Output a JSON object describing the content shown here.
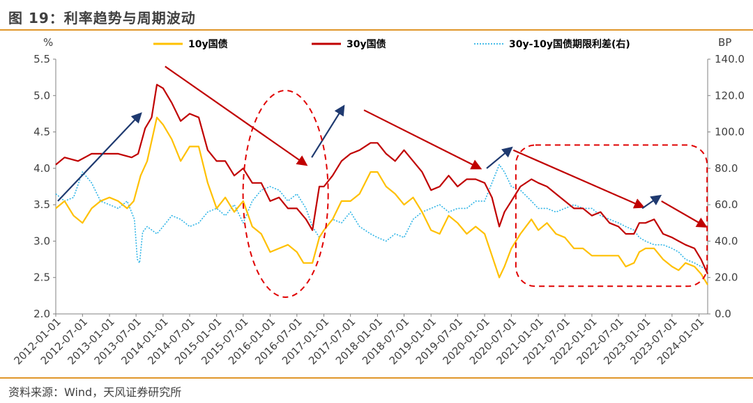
{
  "header": {
    "title": "图 19：利率趋势与周期波动"
  },
  "footer": {
    "source": "资料来源：Wind，天风证券研究所"
  },
  "colors": {
    "accent": "#e0962a",
    "series_10y": "#ffc000",
    "series_30y": "#c00000",
    "series_spread": "#2eb4e6",
    "trend_up": "#1f3a70",
    "trend_down": "#c00000",
    "dashed_marker": "#e00000"
  },
  "chart_data": {
    "type": "line",
    "left_axis_unit": "%",
    "right_axis_unit": "BP",
    "ylim_left": [
      2.0,
      5.5
    ],
    "ylim_right": [
      0.0,
      140.0
    ],
    "yticks_left": [
      "2.0",
      "2.5",
      "3.0",
      "3.5",
      "4.0",
      "4.5",
      "5.0",
      "5.5"
    ],
    "yticks_right": [
      "0.0",
      "20.0",
      "40.0",
      "60.0",
      "80.0",
      "100.0",
      "120.0",
      "140.0"
    ],
    "xticks": [
      "2012-01-01",
      "2012-07-01",
      "2013-01-01",
      "2013-07-01",
      "2014-01-01",
      "2014-07-01",
      "2015-01-01",
      "2015-07-01",
      "2016-01-01",
      "2016-07-01",
      "2017-01-01",
      "2017-07-01",
      "2018-01-01",
      "2018-07-01",
      "2019-01-01",
      "2019-07-01",
      "2020-01-01",
      "2020-07-01",
      "2021-01-01",
      "2021-07-01",
      "2022-01-01",
      "2022-07-01",
      "2023-01-01",
      "2023-07-01",
      "2024-01-01"
    ],
    "x_start": "2012-01-01",
    "x_end": "2024-02-29",
    "grid": false,
    "legend_position": "top",
    "series": [
      {
        "name": "10y国债",
        "axis": "left",
        "style": "solid",
        "points": [
          [
            "2012-01-01",
            3.45
          ],
          [
            "2012-03-01",
            3.55
          ],
          [
            "2012-05-01",
            3.35
          ],
          [
            "2012-07-01",
            3.25
          ],
          [
            "2012-09-01",
            3.45
          ],
          [
            "2012-11-01",
            3.55
          ],
          [
            "2013-01-01",
            3.6
          ],
          [
            "2013-03-01",
            3.55
          ],
          [
            "2013-05-01",
            3.45
          ],
          [
            "2013-06-15",
            3.55
          ],
          [
            "2013-08-01",
            3.9
          ],
          [
            "2013-09-15",
            4.1
          ],
          [
            "2013-11-20",
            4.7
          ],
          [
            "2014-01-01",
            4.6
          ],
          [
            "2014-03-01",
            4.4
          ],
          [
            "2014-05-01",
            4.1
          ],
          [
            "2014-07-01",
            4.3
          ],
          [
            "2014-09-01",
            4.3
          ],
          [
            "2014-11-01",
            3.8
          ],
          [
            "2015-01-01",
            3.45
          ],
          [
            "2015-03-01",
            3.6
          ],
          [
            "2015-05-01",
            3.4
          ],
          [
            "2015-07-01",
            3.55
          ],
          [
            "2015-09-01",
            3.2
          ],
          [
            "2015-11-01",
            3.1
          ],
          [
            "2016-01-01",
            2.85
          ],
          [
            "2016-03-01",
            2.9
          ],
          [
            "2016-05-01",
            2.95
          ],
          [
            "2016-07-01",
            2.85
          ],
          [
            "2016-08-15",
            2.7
          ],
          [
            "2016-10-15",
            2.7
          ],
          [
            "2016-12-01",
            3.05
          ],
          [
            "2017-01-01",
            3.15
          ],
          [
            "2017-03-01",
            3.3
          ],
          [
            "2017-05-01",
            3.55
          ],
          [
            "2017-07-01",
            3.55
          ],
          [
            "2017-09-01",
            3.65
          ],
          [
            "2017-11-15",
            3.95
          ],
          [
            "2018-01-01",
            3.95
          ],
          [
            "2018-03-01",
            3.75
          ],
          [
            "2018-05-01",
            3.65
          ],
          [
            "2018-07-01",
            3.5
          ],
          [
            "2018-09-01",
            3.6
          ],
          [
            "2018-11-01",
            3.4
          ],
          [
            "2019-01-01",
            3.15
          ],
          [
            "2019-03-01",
            3.1
          ],
          [
            "2019-05-01",
            3.35
          ],
          [
            "2019-07-01",
            3.25
          ],
          [
            "2019-09-01",
            3.1
          ],
          [
            "2019-11-01",
            3.2
          ],
          [
            "2020-01-01",
            3.1
          ],
          [
            "2020-02-20",
            2.8
          ],
          [
            "2020-04-10",
            2.5
          ],
          [
            "2020-05-15",
            2.65
          ],
          [
            "2020-07-01",
            2.9
          ],
          [
            "2020-09-01",
            3.1
          ],
          [
            "2020-11-15",
            3.3
          ],
          [
            "2021-01-01",
            3.15
          ],
          [
            "2021-03-01",
            3.25
          ],
          [
            "2021-05-01",
            3.1
          ],
          [
            "2021-07-01",
            3.05
          ],
          [
            "2021-09-01",
            2.9
          ],
          [
            "2021-11-01",
            2.9
          ],
          [
            "2022-01-01",
            2.8
          ],
          [
            "2022-03-01",
            2.8
          ],
          [
            "2022-05-01",
            2.8
          ],
          [
            "2022-07-01",
            2.8
          ],
          [
            "2022-08-20",
            2.65
          ],
          [
            "2022-10-15",
            2.7
          ],
          [
            "2022-11-20",
            2.85
          ],
          [
            "2023-01-01",
            2.9
          ],
          [
            "2023-03-01",
            2.9
          ],
          [
            "2023-05-01",
            2.75
          ],
          [
            "2023-07-01",
            2.65
          ],
          [
            "2023-08-15",
            2.6
          ],
          [
            "2023-10-01",
            2.7
          ],
          [
            "2023-12-01",
            2.65
          ],
          [
            "2024-01-15",
            2.55
          ],
          [
            "2024-02-29",
            2.4
          ]
        ]
      },
      {
        "name": "30y国债",
        "axis": "left",
        "style": "solid",
        "points": [
          [
            "2012-01-01",
            4.05
          ],
          [
            "2012-03-01",
            4.15
          ],
          [
            "2012-06-01",
            4.1
          ],
          [
            "2012-09-01",
            4.2
          ],
          [
            "2012-12-01",
            4.2
          ],
          [
            "2013-03-01",
            4.2
          ],
          [
            "2013-06-01",
            4.15
          ],
          [
            "2013-07-15",
            4.2
          ],
          [
            "2013-09-01",
            4.55
          ],
          [
            "2013-10-15",
            4.7
          ],
          [
            "2013-11-20",
            5.15
          ],
          [
            "2014-01-01",
            5.1
          ],
          [
            "2014-03-01",
            4.9
          ],
          [
            "2014-05-01",
            4.65
          ],
          [
            "2014-07-01",
            4.75
          ],
          [
            "2014-09-01",
            4.7
          ],
          [
            "2014-11-01",
            4.25
          ],
          [
            "2015-01-01",
            4.1
          ],
          [
            "2015-03-01",
            4.1
          ],
          [
            "2015-05-01",
            3.9
          ],
          [
            "2015-07-01",
            4.0
          ],
          [
            "2015-09-01",
            3.8
          ],
          [
            "2015-11-01",
            3.8
          ],
          [
            "2016-01-01",
            3.55
          ],
          [
            "2016-03-01",
            3.6
          ],
          [
            "2016-05-01",
            3.45
          ],
          [
            "2016-07-01",
            3.45
          ],
          [
            "2016-09-01",
            3.3
          ],
          [
            "2016-10-15",
            3.15
          ],
          [
            "2016-12-01",
            3.75
          ],
          [
            "2017-01-01",
            3.75
          ],
          [
            "2017-03-01",
            3.9
          ],
          [
            "2017-05-01",
            4.1
          ],
          [
            "2017-07-01",
            4.2
          ],
          [
            "2017-09-01",
            4.25
          ],
          [
            "2017-11-15",
            4.35
          ],
          [
            "2018-01-01",
            4.35
          ],
          [
            "2018-03-01",
            4.2
          ],
          [
            "2018-05-01",
            4.1
          ],
          [
            "2018-07-01",
            4.25
          ],
          [
            "2018-09-01",
            4.1
          ],
          [
            "2018-11-01",
            3.95
          ],
          [
            "2019-01-01",
            3.7
          ],
          [
            "2019-03-01",
            3.75
          ],
          [
            "2019-05-01",
            3.9
          ],
          [
            "2019-07-01",
            3.75
          ],
          [
            "2019-09-01",
            3.85
          ],
          [
            "2019-11-01",
            3.85
          ],
          [
            "2020-01-01",
            3.8
          ],
          [
            "2020-02-20",
            3.6
          ],
          [
            "2020-04-10",
            3.2
          ],
          [
            "2020-05-15",
            3.4
          ],
          [
            "2020-07-01",
            3.55
          ],
          [
            "2020-09-01",
            3.75
          ],
          [
            "2020-11-15",
            3.85
          ],
          [
            "2021-01-01",
            3.8
          ],
          [
            "2021-03-01",
            3.75
          ],
          [
            "2021-05-01",
            3.65
          ],
          [
            "2021-07-01",
            3.55
          ],
          [
            "2021-09-01",
            3.45
          ],
          [
            "2021-11-01",
            3.45
          ],
          [
            "2022-01-01",
            3.35
          ],
          [
            "2022-03-01",
            3.4
          ],
          [
            "2022-05-01",
            3.25
          ],
          [
            "2022-07-01",
            3.2
          ],
          [
            "2022-08-20",
            3.1
          ],
          [
            "2022-10-15",
            3.1
          ],
          [
            "2022-11-20",
            3.25
          ],
          [
            "2023-01-01",
            3.25
          ],
          [
            "2023-03-01",
            3.3
          ],
          [
            "2023-05-01",
            3.1
          ],
          [
            "2023-07-01",
            3.05
          ],
          [
            "2023-08-15",
            3.0
          ],
          [
            "2023-10-01",
            2.95
          ],
          [
            "2023-12-01",
            2.9
          ],
          [
            "2024-01-15",
            2.75
          ],
          [
            "2024-02-29",
            2.55
          ]
        ]
      },
      {
        "name": "30y-10y国债期限利差(右)",
        "axis": "right",
        "style": "dotted",
        "points": [
          [
            "2012-01-01",
            66
          ],
          [
            "2012-03-01",
            62
          ],
          [
            "2012-05-01",
            64
          ],
          [
            "2012-07-01",
            78
          ],
          [
            "2012-09-01",
            72
          ],
          [
            "2012-11-01",
            62
          ],
          [
            "2013-01-01",
            60
          ],
          [
            "2013-03-01",
            58
          ],
          [
            "2013-05-01",
            62
          ],
          [
            "2013-06-20",
            52
          ],
          [
            "2013-07-10",
            30
          ],
          [
            "2013-07-25",
            28
          ],
          [
            "2013-08-15",
            45
          ],
          [
            "2013-09-15",
            48
          ],
          [
            "2013-11-20",
            44
          ],
          [
            "2014-01-01",
            48
          ],
          [
            "2014-03-01",
            54
          ],
          [
            "2014-05-01",
            52
          ],
          [
            "2014-07-01",
            48
          ],
          [
            "2014-09-01",
            50
          ],
          [
            "2014-11-01",
            56
          ],
          [
            "2015-01-01",
            58
          ],
          [
            "2015-03-01",
            54
          ],
          [
            "2015-05-01",
            60
          ],
          [
            "2015-07-01",
            50
          ],
          [
            "2015-09-01",
            62
          ],
          [
            "2015-11-01",
            68
          ],
          [
            "2016-01-01",
            70
          ],
          [
            "2016-03-01",
            68
          ],
          [
            "2016-05-01",
            62
          ],
          [
            "2016-07-01",
            66
          ],
          [
            "2016-09-01",
            58
          ],
          [
            "2016-10-15",
            48
          ],
          [
            "2016-12-01",
            42
          ],
          [
            "2017-01-01",
            46
          ],
          [
            "2017-03-01",
            52
          ],
          [
            "2017-05-01",
            50
          ],
          [
            "2017-07-01",
            56
          ],
          [
            "2017-09-01",
            48
          ],
          [
            "2017-11-15",
            44
          ],
          [
            "2018-01-01",
            42
          ],
          [
            "2018-03-01",
            40
          ],
          [
            "2018-05-01",
            44
          ],
          [
            "2018-07-01",
            42
          ],
          [
            "2018-09-01",
            52
          ],
          [
            "2018-11-01",
            56
          ],
          [
            "2019-01-01",
            58
          ],
          [
            "2019-03-01",
            60
          ],
          [
            "2019-05-01",
            56
          ],
          [
            "2019-07-01",
            58
          ],
          [
            "2019-09-01",
            58
          ],
          [
            "2019-11-01",
            62
          ],
          [
            "2020-01-01",
            62
          ],
          [
            "2020-02-20",
            72
          ],
          [
            "2020-04-10",
            82
          ],
          [
            "2020-05-15",
            78
          ],
          [
            "2020-07-01",
            70
          ],
          [
            "2020-09-01",
            68
          ],
          [
            "2020-11-15",
            62
          ],
          [
            "2021-01-01",
            58
          ],
          [
            "2021-03-01",
            58
          ],
          [
            "2021-05-01",
            56
          ],
          [
            "2021-07-01",
            58
          ],
          [
            "2021-09-01",
            60
          ],
          [
            "2021-11-01",
            58
          ],
          [
            "2022-01-01",
            58
          ],
          [
            "2022-03-01",
            54
          ],
          [
            "2022-05-01",
            52
          ],
          [
            "2022-07-01",
            50
          ],
          [
            "2022-08-20",
            48
          ],
          [
            "2022-10-15",
            46
          ],
          [
            "2022-11-20",
            42
          ],
          [
            "2023-01-01",
            40
          ],
          [
            "2023-03-01",
            38
          ],
          [
            "2023-05-01",
            38
          ],
          [
            "2023-07-01",
            36
          ],
          [
            "2023-08-15",
            34
          ],
          [
            "2023-10-01",
            30
          ],
          [
            "2023-12-01",
            28
          ],
          [
            "2024-01-15",
            26
          ],
          [
            "2024-02-29",
            24
          ]
        ]
      }
    ],
    "annotations": {
      "arrows": [
        {
          "kind": "up",
          "from": [
            "2012-01-15",
            3.55
          ],
          "to": [
            "2013-08-01",
            4.75
          ]
        },
        {
          "kind": "down",
          "from": [
            "2014-01-15",
            5.4
          ],
          "to": [
            "2016-09-01",
            4.05
          ]
        },
        {
          "kind": "up",
          "from": [
            "2016-10-10",
            4.15
          ],
          "to": [
            "2017-05-15",
            4.85
          ]
        },
        {
          "kind": "down",
          "from": [
            "2017-10-01",
            4.8
          ],
          "to": [
            "2019-12-01",
            4.0
          ]
        },
        {
          "kind": "up",
          "from": [
            "2020-01-15",
            4.0
          ],
          "to": [
            "2020-07-01",
            4.28
          ]
        },
        {
          "kind": "down",
          "from": [
            "2020-07-15",
            4.25
          ],
          "to": [
            "2022-12-15",
            3.47
          ]
        },
        {
          "kind": "up",
          "from": [
            "2022-12-10",
            3.45
          ],
          "to": [
            "2023-04-10",
            3.62
          ]
        },
        {
          "kind": "down",
          "from": [
            "2023-04-20",
            3.55
          ],
          "to": [
            "2024-02-15",
            3.2
          ]
        }
      ],
      "ellipse": {
        "center": [
          "2016-04-15",
          3.65
        ],
        "half_width_days": 290,
        "half_height": 1.42
      },
      "rounded_rect": {
        "from": [
          "2020-08-01",
          4.32
        ],
        "to": [
          "2024-02-25",
          2.38
        ]
      }
    }
  },
  "legend": {
    "item_10y": "10y国债",
    "item_30y": "30y国债",
    "item_spread": "30y-10y国债期限利差(右)"
  },
  "icons": [
    "line-swatch-icon",
    "dotted-swatch-icon",
    "trend-arrow-icon"
  ]
}
